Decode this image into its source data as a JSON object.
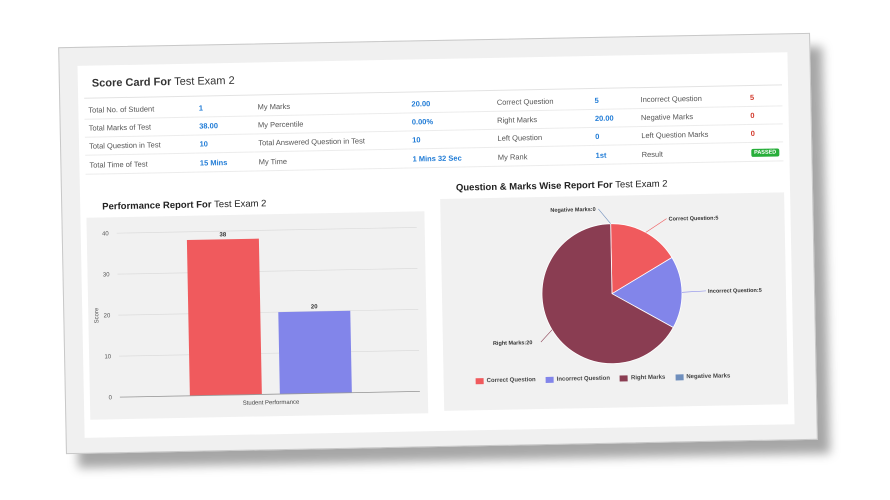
{
  "score_card": {
    "title_prefix": "Score Card For",
    "exam_name": "Test Exam 2",
    "rows": [
      [
        {
          "label": "Total No. of Student",
          "value": "1"
        },
        {
          "label": "My Marks",
          "value": "20.00"
        },
        {
          "label": "Correct Question",
          "value": "5"
        },
        {
          "label": "Incorrect Question",
          "value": "5"
        }
      ],
      [
        {
          "label": "Total Marks of Test",
          "value": "38.00"
        },
        {
          "label": "My Percentile",
          "value": "0.00%"
        },
        {
          "label": "Right Marks",
          "value": "20.00"
        },
        {
          "label": "Negative Marks",
          "value": "0"
        }
      ],
      [
        {
          "label": "Total Question in Test",
          "value": "10"
        },
        {
          "label": "Total Answered Question in Test",
          "value": "10"
        },
        {
          "label": "Left Question",
          "value": "0"
        },
        {
          "label": "Left Question Marks",
          "value": "0"
        }
      ],
      [
        {
          "label": "Total Time of Test",
          "value": "15 Mins"
        },
        {
          "label": "My Time",
          "value": "1 Mins 32 Sec"
        },
        {
          "label": "My Rank",
          "value": "1st"
        },
        {
          "label": "Result",
          "value": "PASSED"
        }
      ]
    ]
  },
  "performance": {
    "title_prefix": "Performance Report For",
    "exam_name": "Test Exam 2"
  },
  "question_marks": {
    "title_prefix": "Question & Marks Wise Report For",
    "exam_name": "Test Exam 2"
  },
  "colors": {
    "bar_red": "#f05a5d",
    "bar_blue": "#8285ea",
    "right_marks": "#8a3d52",
    "negative_marks": "#6f8fbd",
    "value_blue": "#1f7bd6",
    "value_red": "#d23a2c",
    "passed_green": "#27ae3a"
  },
  "chart_data": [
    {
      "type": "bar",
      "categories": [
        "Student Performance"
      ],
      "series": [
        {
          "values": [
            38
          ]
        },
        {
          "values": [
            20
          ]
        }
      ],
      "xlabel": "Student Performance",
      "ylabel": "Score",
      "ylim": [
        0,
        40
      ],
      "yticks": [
        0,
        10,
        20,
        30,
        40
      ],
      "data_labels": [
        "38",
        "20"
      ]
    },
    {
      "type": "pie",
      "labels": [
        "Correct Question",
        "Incorrect Question",
        "Right Marks",
        "Negative Marks"
      ],
      "values": [
        5,
        5,
        20,
        0
      ],
      "slice_labels": [
        "Correct Question:5",
        "Incorrect Question:5",
        "Right Marks:20",
        "Negative Marks:0"
      ],
      "legend_placement": "bottom"
    }
  ]
}
